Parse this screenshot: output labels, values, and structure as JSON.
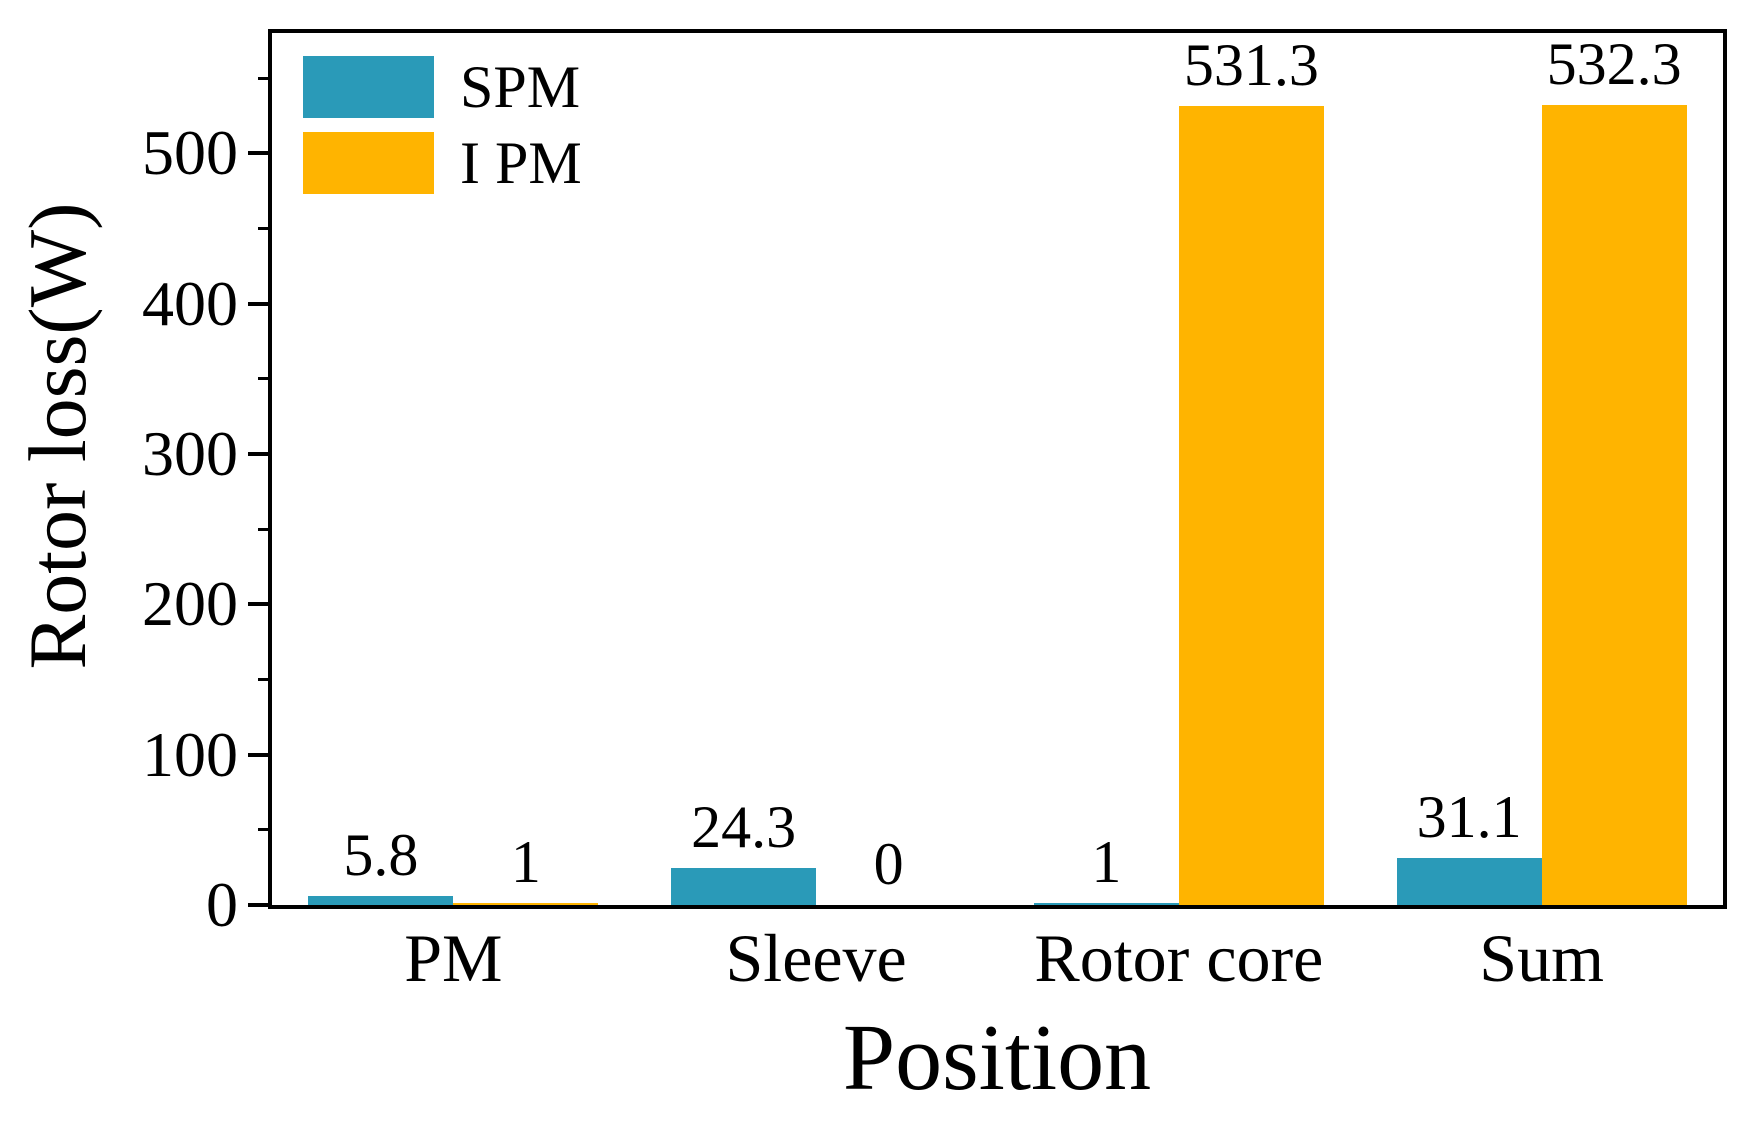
{
  "chart_data": {
    "type": "bar",
    "title": "",
    "xlabel": "Position",
    "ylabel": "Rotor loss(W)",
    "categories": [
      "PM",
      "Sleeve",
      "Rotor core",
      "Sum"
    ],
    "series": [
      {
        "name": "SPM",
        "color": "#2A9AB8",
        "values": [
          5.8,
          24.3,
          1,
          31.1
        ],
        "value_labels": [
          "5.8",
          "24.3",
          "1",
          "31.1"
        ]
      },
      {
        "name": "I PM",
        "color": "#FFB400",
        "values": [
          1,
          0,
          531.3,
          532.3
        ],
        "value_labels": [
          "1",
          "0",
          "531.3",
          "532.3"
        ]
      }
    ],
    "y_ticks": [
      0,
      100,
      200,
      300,
      400,
      500
    ],
    "y_tick_labels": [
      "0",
      "100",
      "200",
      "300",
      "400",
      "500"
    ],
    "y_minor_ticks": [
      50,
      150,
      250,
      350,
      450,
      550
    ],
    "ylim": [
      0,
      580
    ],
    "grid": false,
    "legend_position": "top-left",
    "axis_color": "#000000",
    "text_color": "#000000",
    "background_color": "#ffffff"
  }
}
